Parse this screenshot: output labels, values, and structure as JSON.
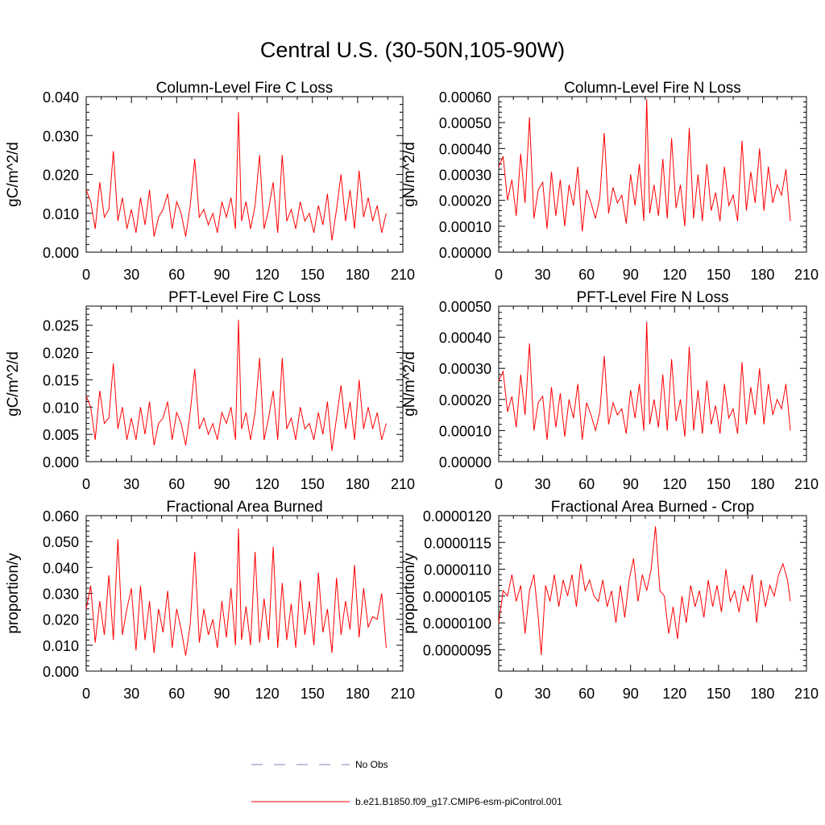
{
  "title": "Central U.S. (30-50N,105-90W)",
  "legend": {
    "obs_label": "No Obs",
    "model_label": "b.e21.B1850.f09_g17.CMIP6-esm-piControl.001",
    "obs_color": "#8080c0",
    "model_color": "#ff0000"
  },
  "chart_data": [
    {
      "type": "line",
      "title": "Column-Level Fire C Loss",
      "ylabel": "gC/m^2/d",
      "xlabel": "",
      "xlim": [
        0,
        210
      ],
      "ylim": [
        0,
        0.04
      ],
      "xticks": [
        "0",
        "30",
        "60",
        "90",
        "120",
        "150",
        "180",
        "210"
      ],
      "yticks": [
        "0.000",
        "0.010",
        "0.020",
        "0.030",
        "0.040"
      ],
      "series": [
        {
          "name": "b.e21.B1850.f09_g17.CMIP6-esm-piControl.001",
          "color": "#ff0000",
          "x": [
            0,
            3,
            6,
            9,
            12,
            15,
            18,
            21,
            24,
            27,
            30,
            33,
            36,
            39,
            42,
            45,
            48,
            51,
            54,
            57,
            60,
            63,
            66,
            69,
            72,
            75,
            78,
            81,
            84,
            87,
            90,
            93,
            96,
            99,
            101,
            103,
            106,
            109,
            112,
            115,
            118,
            121,
            124,
            127,
            130,
            133,
            136,
            139,
            142,
            145,
            148,
            151,
            154,
            157,
            160,
            163,
            166,
            169,
            172,
            175,
            178,
            181,
            184,
            187,
            190,
            193,
            196,
            199
          ],
          "y": [
            0.016,
            0.013,
            0.006,
            0.018,
            0.009,
            0.011,
            0.026,
            0.008,
            0.014,
            0.006,
            0.011,
            0.005,
            0.014,
            0.007,
            0.016,
            0.004,
            0.009,
            0.011,
            0.015,
            0.006,
            0.013,
            0.01,
            0.004,
            0.012,
            0.024,
            0.009,
            0.011,
            0.007,
            0.01,
            0.005,
            0.013,
            0.009,
            0.014,
            0.006,
            0.036,
            0.008,
            0.013,
            0.006,
            0.012,
            0.025,
            0.006,
            0.011,
            0.018,
            0.005,
            0.025,
            0.008,
            0.011,
            0.006,
            0.013,
            0.008,
            0.01,
            0.005,
            0.012,
            0.007,
            0.015,
            0.003,
            0.011,
            0.02,
            0.008,
            0.016,
            0.006,
            0.021,
            0.009,
            0.014,
            0.008,
            0.012,
            0.005,
            0.01
          ]
        }
      ]
    },
    {
      "type": "line",
      "title": "Column-Level Fire N Loss",
      "ylabel": "gN/m^2/d",
      "xlabel": "",
      "xlim": [
        0,
        210
      ],
      "ylim": [
        0,
        0.0006
      ],
      "xticks": [
        "0",
        "30",
        "60",
        "90",
        "120",
        "150",
        "180",
        "210"
      ],
      "yticks": [
        "0.00000",
        "0.00010",
        "0.00020",
        "0.00030",
        "0.00040",
        "0.00050",
        "0.00060"
      ],
      "series": [
        {
          "name": "b.e21.B1850.f09_g17.CMIP6-esm-piControl.001",
          "color": "#ff0000",
          "x": [
            0,
            3,
            6,
            9,
            12,
            15,
            18,
            21,
            24,
            27,
            30,
            33,
            36,
            39,
            42,
            45,
            48,
            51,
            54,
            57,
            60,
            63,
            66,
            69,
            72,
            75,
            78,
            81,
            84,
            87,
            90,
            93,
            96,
            99,
            101,
            103,
            106,
            109,
            112,
            115,
            118,
            121,
            124,
            127,
            130,
            133,
            136,
            139,
            142,
            145,
            148,
            151,
            154,
            157,
            160,
            163,
            166,
            169,
            172,
            175,
            178,
            181,
            184,
            187,
            190,
            193,
            196,
            199
          ],
          "y": [
            0.00033,
            0.00037,
            0.0002,
            0.00028,
            0.00014,
            0.00038,
            0.00019,
            0.00052,
            0.00013,
            0.00024,
            0.00027,
            9e-05,
            0.00031,
            0.00014,
            0.00028,
            0.0001,
            0.00026,
            0.00018,
            0.00033,
            8e-05,
            0.00024,
            0.00019,
            0.00013,
            0.00021,
            0.00046,
            0.00015,
            0.00025,
            0.00019,
            0.00022,
            0.00011,
            0.0003,
            0.00018,
            0.00034,
            0.00012,
            0.00059,
            0.00015,
            0.00026,
            0.00014,
            0.00036,
            0.00013,
            0.00044,
            0.00017,
            0.00026,
            0.0001,
            0.00048,
            0.00013,
            0.0003,
            0.00012,
            0.00034,
            0.00016,
            0.00023,
            0.00012,
            0.00033,
            0.00018,
            0.00022,
            0.00012,
            0.00043,
            0.00016,
            0.00031,
            0.00019,
            0.0004,
            0.00016,
            0.00033,
            0.00019,
            0.00026,
            0.00022,
            0.00032,
            0.00012
          ]
        }
      ]
    },
    {
      "type": "line",
      "title": "PFT-Level Fire C Loss",
      "ylabel": "gC/m^2/d",
      "xlabel": "",
      "xlim": [
        0,
        210
      ],
      "ylim": [
        0,
        0.0285
      ],
      "xticks": [
        "0",
        "30",
        "60",
        "90",
        "120",
        "150",
        "180",
        "210"
      ],
      "yticks": [
        "0.000",
        "0.005",
        "0.010",
        "0.015",
        "0.020",
        "0.025"
      ],
      "series": [
        {
          "name": "b.e21.B1850.f09_g17.CMIP6-esm-piControl.001",
          "color": "#ff0000",
          "x": [
            0,
            3,
            6,
            9,
            12,
            15,
            18,
            21,
            24,
            27,
            30,
            33,
            36,
            39,
            42,
            45,
            48,
            51,
            54,
            57,
            60,
            63,
            66,
            69,
            72,
            75,
            78,
            81,
            84,
            87,
            90,
            93,
            96,
            99,
            101,
            103,
            106,
            109,
            112,
            115,
            118,
            121,
            124,
            127,
            130,
            133,
            136,
            139,
            142,
            145,
            148,
            151,
            154,
            157,
            160,
            163,
            166,
            169,
            172,
            175,
            178,
            181,
            184,
            187,
            190,
            193,
            196,
            199
          ],
          "y": [
            0.012,
            0.01,
            0.004,
            0.013,
            0.007,
            0.008,
            0.018,
            0.006,
            0.01,
            0.004,
            0.008,
            0.004,
            0.01,
            0.005,
            0.011,
            0.003,
            0.007,
            0.008,
            0.011,
            0.004,
            0.009,
            0.007,
            0.003,
            0.009,
            0.017,
            0.006,
            0.008,
            0.005,
            0.007,
            0.004,
            0.009,
            0.007,
            0.01,
            0.004,
            0.026,
            0.006,
            0.009,
            0.004,
            0.009,
            0.019,
            0.004,
            0.008,
            0.013,
            0.004,
            0.019,
            0.006,
            0.008,
            0.004,
            0.01,
            0.006,
            0.007,
            0.004,
            0.009,
            0.005,
            0.011,
            0.002,
            0.008,
            0.014,
            0.006,
            0.011,
            0.004,
            0.015,
            0.006,
            0.01,
            0.006,
            0.009,
            0.004,
            0.007
          ]
        }
      ]
    },
    {
      "type": "line",
      "title": "PFT-Level Fire N Loss",
      "ylabel": "gN/m^2/d",
      "xlabel": "",
      "xlim": [
        0,
        210
      ],
      "ylim": [
        0,
        0.0005
      ],
      "xticks": [
        "0",
        "30",
        "60",
        "90",
        "120",
        "150",
        "180",
        "210"
      ],
      "yticks": [
        "0.00000",
        "0.00010",
        "0.00020",
        "0.00030",
        "0.00040",
        "0.00050"
      ],
      "series": [
        {
          "name": "b.e21.B1850.f09_g17.CMIP6-esm-piControl.001",
          "color": "#ff0000",
          "x": [
            0,
            3,
            6,
            9,
            12,
            15,
            18,
            21,
            24,
            27,
            30,
            33,
            36,
            39,
            42,
            45,
            48,
            51,
            54,
            57,
            60,
            63,
            66,
            69,
            72,
            75,
            78,
            81,
            84,
            87,
            90,
            93,
            96,
            99,
            101,
            103,
            106,
            109,
            112,
            115,
            118,
            121,
            124,
            127,
            130,
            133,
            136,
            139,
            142,
            145,
            148,
            151,
            154,
            157,
            160,
            163,
            166,
            169,
            172,
            175,
            178,
            181,
            184,
            187,
            190,
            193,
            196,
            199
          ],
          "y": [
            0.00026,
            0.00029,
            0.00016,
            0.00021,
            0.00011,
            0.00028,
            0.00015,
            0.00038,
            0.0001,
            0.00019,
            0.00021,
            7e-05,
            0.00024,
            0.00011,
            0.00022,
            8e-05,
            0.0002,
            0.00014,
            0.00025,
            7e-05,
            0.00019,
            0.00015,
            0.0001,
            0.00016,
            0.00034,
            0.00012,
            0.00019,
            0.00015,
            0.00017,
            9e-05,
            0.00023,
            0.00014,
            0.00025,
            0.0001,
            0.00045,
            0.00012,
            0.0002,
            0.00011,
            0.00028,
            0.0001,
            0.00033,
            0.00013,
            0.0002,
            8e-05,
            0.00037,
            0.0001,
            0.00023,
            9e-05,
            0.00026,
            0.00012,
            0.00018,
            9e-05,
            0.00025,
            0.00014,
            0.00017,
            9e-05,
            0.00032,
            0.00012,
            0.00024,
            0.00015,
            0.0003,
            0.00012,
            0.00025,
            0.00015,
            0.0002,
            0.00017,
            0.00025,
            0.0001
          ]
        }
      ]
    },
    {
      "type": "line",
      "title": "Fractional Area Burned",
      "ylabel": "proportion/y",
      "xlabel": "",
      "xlim": [
        0,
        210
      ],
      "ylim": [
        0,
        0.06
      ],
      "xticks": [
        "0",
        "30",
        "60",
        "90",
        "120",
        "150",
        "180",
        "210"
      ],
      "yticks": [
        "0.000",
        "0.010",
        "0.020",
        "0.030",
        "0.040",
        "0.050",
        "0.060"
      ],
      "series": [
        {
          "name": "b.e21.B1850.f09_g17.CMIP6-esm-piControl.001",
          "color": "#ff0000",
          "x": [
            0,
            3,
            6,
            9,
            12,
            15,
            18,
            21,
            24,
            27,
            30,
            33,
            36,
            39,
            42,
            45,
            48,
            51,
            54,
            57,
            60,
            63,
            66,
            69,
            72,
            75,
            78,
            81,
            84,
            87,
            90,
            93,
            96,
            99,
            101,
            103,
            106,
            109,
            112,
            115,
            118,
            121,
            124,
            127,
            130,
            133,
            136,
            139,
            142,
            145,
            148,
            151,
            154,
            157,
            160,
            163,
            166,
            169,
            172,
            175,
            178,
            181,
            184,
            187,
            190,
            193,
            196,
            199
          ],
          "y": [
            0.024,
            0.033,
            0.011,
            0.027,
            0.014,
            0.037,
            0.012,
            0.051,
            0.014,
            0.024,
            0.032,
            0.008,
            0.033,
            0.012,
            0.027,
            0.007,
            0.024,
            0.015,
            0.031,
            0.009,
            0.024,
            0.016,
            0.006,
            0.018,
            0.046,
            0.011,
            0.024,
            0.014,
            0.02,
            0.009,
            0.027,
            0.013,
            0.032,
            0.01,
            0.055,
            0.012,
            0.025,
            0.01,
            0.046,
            0.011,
            0.028,
            0.012,
            0.048,
            0.009,
            0.034,
            0.012,
            0.026,
            0.009,
            0.035,
            0.014,
            0.027,
            0.01,
            0.038,
            0.015,
            0.024,
            0.007,
            0.036,
            0.014,
            0.027,
            0.016,
            0.041,
            0.013,
            0.032,
            0.017,
            0.021,
            0.02,
            0.03,
            0.009
          ]
        }
      ]
    },
    {
      "type": "line",
      "title": "Fractional Area Burned - Crop",
      "ylabel": "proportion/y",
      "xlabel": "",
      "xlim": [
        0,
        210
      ],
      "ylim": [
        9.1e-06,
        1.2e-05
      ],
      "xticks": [
        "0",
        "30",
        "60",
        "90",
        "120",
        "150",
        "180",
        "210"
      ],
      "yticks": [
        "0.0000095",
        "0.0000100",
        "0.0000105",
        "0.0000110",
        "0.0000115",
        "0.0000120"
      ],
      "series": [
        {
          "name": "b.e21.B1850.f09_g17.CMIP6-esm-piControl.001",
          "color": "#ff0000",
          "x": [
            0,
            3,
            6,
            9,
            12,
            15,
            18,
            21,
            24,
            27,
            29,
            32,
            35,
            38,
            41,
            44,
            47,
            50,
            53,
            56,
            59,
            62,
            65,
            68,
            71,
            74,
            77,
            80,
            83,
            86,
            89,
            92,
            95,
            98,
            101,
            104,
            107,
            110,
            113,
            116,
            119,
            122,
            125,
            128,
            131,
            134,
            137,
            140,
            143,
            146,
            149,
            152,
            155,
            158,
            161,
            164,
            167,
            170,
            173,
            176,
            179,
            182,
            185,
            188,
            191,
            194,
            197,
            199
          ],
          "y": [
            1e-05,
            1.06e-05,
            1.05e-05,
            1.09e-05,
            1.04e-05,
            1.07e-05,
            9.8e-06,
            1.06e-05,
            1.09e-05,
            1.01e-05,
            9.4e-06,
            1.07e-05,
            1.04e-05,
            1.09e-05,
            1.03e-05,
            1.08e-05,
            1.05e-05,
            1.09e-05,
            1.03e-05,
            1.11e-05,
            1.06e-05,
            1.08e-05,
            1.05e-05,
            1.04e-05,
            1.08e-05,
            1.03e-05,
            1.06e-05,
            1e-05,
            1.07e-05,
            1.01e-05,
            1.08e-05,
            1.12e-05,
            1.04e-05,
            1.09e-05,
            1.06e-05,
            1.1e-05,
            1.18e-05,
            1.06e-05,
            1.05e-05,
            9.8e-06,
            1.03e-05,
            9.7e-06,
            1.05e-05,
            1e-05,
            1.07e-05,
            1.03e-05,
            1.06e-05,
            1.01e-05,
            1.08e-05,
            1.03e-05,
            1.07e-05,
            1.02e-05,
            1.1e-05,
            1.04e-05,
            1.06e-05,
            1.02e-05,
            1.07e-05,
            1.04e-05,
            1.09e-05,
            1e-05,
            1.08e-05,
            1.03e-05,
            1.07e-05,
            1.05e-05,
            1.09e-05,
            1.11e-05,
            1.08e-05,
            1.04e-05
          ]
        }
      ]
    }
  ]
}
